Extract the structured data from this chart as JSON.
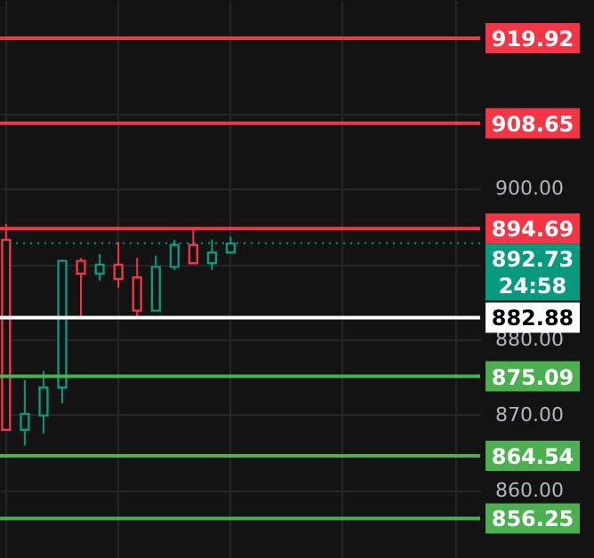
{
  "chart_data": {
    "type": "candlestick",
    "categories": [
      null,
      null,
      null,
      null,
      null,
      null,
      null,
      null,
      null,
      null,
      null,
      null,
      null,
      null,
      null,
      null,
      null,
      null,
      null,
      null,
      null,
      null,
      null,
      null,
      null,
      null
    ],
    "ohlc": [
      [
        893.2,
        895.3,
        868.0,
        868.0
      ],
      [
        868.0,
        874.6,
        865.9,
        870.1
      ],
      [
        869.9,
        875.8,
        867.5,
        873.6
      ],
      [
        873.6,
        890.6,
        871.5,
        890.4
      ],
      [
        890.4,
        890.8,
        882.8,
        888.7
      ],
      [
        888.7,
        891.3,
        887.8,
        889.9
      ],
      [
        889.9,
        892.9,
        886.8,
        888.0
      ],
      [
        888.2,
        890.8,
        882.8,
        883.8
      ],
      [
        883.8,
        891.1,
        883.8,
        889.6
      ],
      [
        889.6,
        893.2,
        889.2,
        892.5
      ],
      [
        892.5,
        894.8,
        890.1,
        890.1
      ],
      [
        890.1,
        893.2,
        889.2,
        891.5
      ],
      [
        891.5,
        893.6,
        891.5,
        892.7
      ],
      null,
      null,
      null,
      null,
      null,
      null,
      null,
      null,
      null,
      null,
      null,
      null,
      null
    ],
    "colors": [
      "#f23645",
      "#089981",
      "#089981",
      "#089981",
      "#f23645",
      "#089981",
      "#f23645",
      "#f23645",
      "#089981",
      "#089981",
      "#f23645",
      "#089981",
      "#089981",
      null,
      null,
      null,
      null,
      null,
      null,
      null,
      null,
      null,
      null,
      null,
      null,
      null
    ],
    "ylim": [
      851,
      925
    ],
    "yticks": [
      {
        "value": 860,
        "label": "860.00"
      },
      {
        "value": 870,
        "label": "870.00"
      },
      {
        "value": 880,
        "label": "880.00"
      },
      {
        "value": 890,
        "label": null
      },
      {
        "value": 900,
        "label": "900.00"
      },
      {
        "value": 910,
        "label": null
      },
      {
        "value": 920,
        "label": null
      }
    ],
    "tick_labels": "y",
    "grid": true,
    "ref_lines": [
      {
        "axis": "y",
        "value": 919.92,
        "label": "919.92",
        "color": "#f23645"
      },
      {
        "axis": "y",
        "value": 908.65,
        "label": "908.65",
        "color": "#f23645"
      },
      {
        "axis": "y",
        "value": 894.69,
        "label": "894.69",
        "color": "#f23645"
      },
      {
        "axis": "y",
        "value": 882.88,
        "label": "882.88",
        "color": "#ffffff"
      },
      {
        "axis": "y",
        "value": 875.09,
        "label": "875.09",
        "color": "#4caf50"
      },
      {
        "axis": "y",
        "value": 864.54,
        "label": "864.54",
        "color": "#4caf50"
      },
      {
        "axis": "y",
        "value": 856.25,
        "label": "856.25",
        "color": "#4caf50"
      },
      {
        "axis": "y",
        "value": 892.73,
        "label": "892.73",
        "color": "#089981",
        "line_style": "dotted"
      }
    ],
    "annotations": [
      "24:58"
    ]
  }
}
